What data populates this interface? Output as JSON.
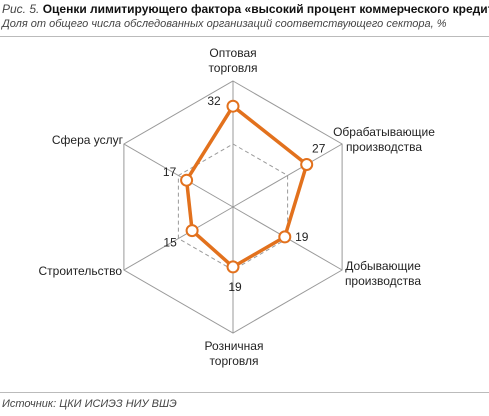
{
  "figure": {
    "number": "Рис. 5.",
    "title": "Оценки лимитирующего фактора «высокий процент коммерческого кредита»",
    "subtitle": "Доля от общего числа обследованных организаций соответствующего сектора, %",
    "source": "Источник: ЦКИ ИСИЭЗ НИУ ВШЭ"
  },
  "chart_data": {
    "type": "radar",
    "axes": [
      [
        "Оптовая",
        "торговля"
      ],
      [
        "Обрабатывающие",
        "производства"
      ],
      [
        "Добывающие",
        "производства"
      ],
      [
        "Розничная",
        "торговля"
      ],
      [
        "Строительство"
      ],
      [
        "Сфера услуг"
      ]
    ],
    "values": [
      32,
      27,
      19,
      19,
      15,
      17
    ],
    "max": 40,
    "grid_rings": [
      20,
      40
    ],
    "inner_ring_dashed": true,
    "series_color": "#e2711d",
    "grid_color": "#9a9a9a"
  }
}
